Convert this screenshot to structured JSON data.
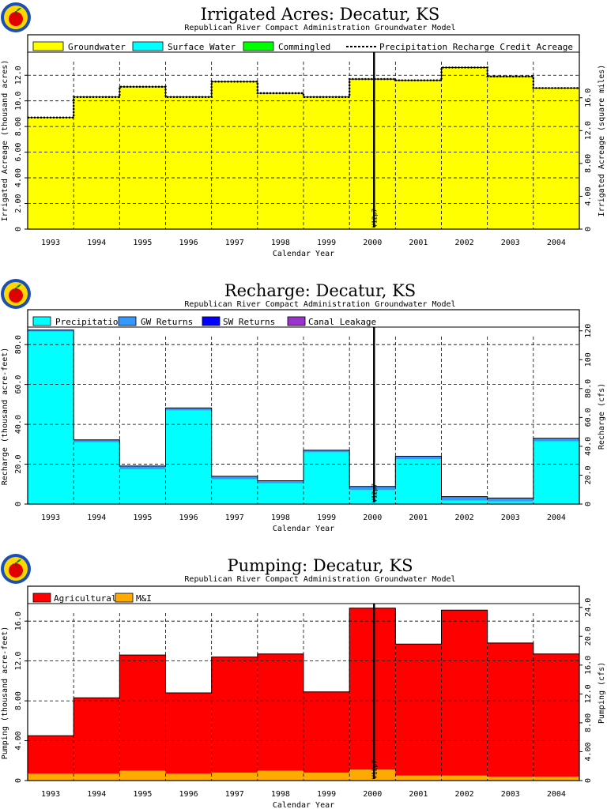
{
  "chart_data": [
    {
      "type": "step-area",
      "title": "Irrigated Acres: Decatur, KS",
      "subtitle": "Republican River Compact Administration Groundwater Model",
      "xlabel": "Calendar Year",
      "ylabel": "Irrigated Acreage (thousand acres)",
      "ylabel_right": "Irrigated Acreage (square miles)",
      "categories": [
        "1993",
        "1994",
        "1995",
        "1996",
        "1997",
        "1998",
        "1999",
        "2000",
        "2001",
        "2002",
        "2003",
        "2004"
      ],
      "ylim": [
        0,
        13.8
      ],
      "yticks": [
        "0",
        "2.00",
        "4.00",
        "6.00",
        "8.00",
        "10.0",
        "12.0"
      ],
      "y2lim": [
        0,
        21.56
      ],
      "y2ticks": [
        "0",
        "4.00",
        "8.00",
        "12.0",
        "16.0"
      ],
      "legend": [
        "Groundwater",
        "Surface Water",
        "Commingled",
        "Precipitation Recharge Credit Acreage"
      ],
      "series": [
        {
          "name": "Groundwater",
          "color": "#ffff00",
          "values": [
            8.7,
            10.3,
            11.1,
            10.3,
            11.5,
            10.6,
            10.3,
            11.7,
            11.6,
            12.6,
            11.9,
            11.0
          ]
        },
        {
          "name": "Surface Water",
          "color": "#00ffff",
          "values": [
            0,
            0,
            0,
            0,
            0,
            0,
            0,
            0,
            0,
            0,
            0,
            0
          ]
        },
        {
          "name": "Commingled",
          "color": "#00ff00",
          "values": [
            0,
            0,
            0,
            0,
            0,
            0,
            0,
            0,
            0,
            0,
            0,
            0
          ]
        },
        {
          "name": "Precipitation Recharge Credit Acreage",
          "color": "#000000",
          "style": "dashed",
          "values": [
            8.7,
            10.3,
            11.1,
            10.3,
            11.5,
            10.6,
            10.3,
            11.7,
            11.6,
            12.6,
            11.9,
            11.0
          ]
        }
      ],
      "marker_label": "V12p7",
      "legend_position": "top"
    },
    {
      "type": "step-area",
      "title": "Recharge: Decatur, KS",
      "subtitle": "Republican River Compact Administration Groundwater Model",
      "xlabel": "Calendar Year",
      "ylabel": "Recharge (thousand acre-feet)",
      "ylabel_right": "Recharge (cfs)",
      "categories": [
        "1993",
        "1994",
        "1995",
        "1996",
        "1997",
        "1998",
        "1999",
        "2000",
        "2001",
        "2002",
        "2003",
        "2004"
      ],
      "ylim": [
        0,
        88
      ],
      "yticks": [
        "0",
        "20.0",
        "40.0",
        "60.0",
        "80.0"
      ],
      "y2lim": [
        0,
        121.5
      ],
      "y2ticks": [
        "0",
        "20.0",
        "40.0",
        "60.0",
        "80.0",
        "100",
        "120"
      ],
      "legend": [
        "Precipitation",
        "GW Returns",
        "SW Returns",
        "Canal Leakage"
      ],
      "series": [
        {
          "name": "Precipitation",
          "color": "#00ffff",
          "values": [
            86.5,
            31.0,
            17.5,
            47.0,
            12.5,
            10.5,
            26.0,
            7.0,
            22.5,
            1.8,
            1.3,
            31.5
          ]
        },
        {
          "name": "GW Returns",
          "color": "#3399ff",
          "values": [
            0.8,
            1.2,
            1.6,
            1.2,
            1.4,
            1.2,
            1.0,
            1.8,
            1.5,
            1.9,
            1.7,
            1.5
          ]
        },
        {
          "name": "SW Returns",
          "color": "#0000ff",
          "values": [
            0,
            0,
            0,
            0,
            0,
            0,
            0,
            0,
            0,
            0,
            0,
            0
          ]
        },
        {
          "name": "Canal Leakage",
          "color": "#9933cc",
          "values": [
            0,
            0,
            0,
            0,
            0,
            0,
            0,
            0,
            0,
            0,
            0,
            0
          ]
        }
      ],
      "marker_label": "V12p7",
      "legend_position": "top"
    },
    {
      "type": "step-area",
      "title": "Pumping: Decatur, KS",
      "subtitle": "Republican River Compact Administration Groundwater Model",
      "xlabel": "Calendar Year",
      "ylabel": "Pumping (thousand acre-feet)",
      "ylabel_right": "Pumping (cfs)",
      "categories": [
        "1993",
        "1994",
        "1995",
        "1996",
        "1997",
        "1998",
        "1999",
        "2000",
        "2001",
        "2002",
        "2003",
        "2004"
      ],
      "ylim": [
        0,
        17.6
      ],
      "yticks": [
        "0",
        "4.00",
        "8.00",
        "12.0",
        "16.0"
      ],
      "y2lim": [
        0,
        24.3
      ],
      "y2ticks": [
        "0",
        "4.00",
        "8.00",
        "12.0",
        "16.0",
        "20.0",
        "24.0"
      ],
      "legend": [
        "Agricultural",
        "M&I"
      ],
      "series": [
        {
          "name": "M&I",
          "color": "#ffaa00",
          "values": [
            0.7,
            0.7,
            1.0,
            0.7,
            0.8,
            1.0,
            0.8,
            1.1,
            0.5,
            0.5,
            0.4,
            0.4
          ]
        },
        {
          "name": "Agricultural",
          "color": "#ff0000",
          "values": [
            3.8,
            7.6,
            11.6,
            8.1,
            11.6,
            11.7,
            8.1,
            16.2,
            13.2,
            16.6,
            13.4,
            12.3
          ]
        }
      ],
      "marker_label": "V12p7",
      "legend_position": "top"
    }
  ]
}
